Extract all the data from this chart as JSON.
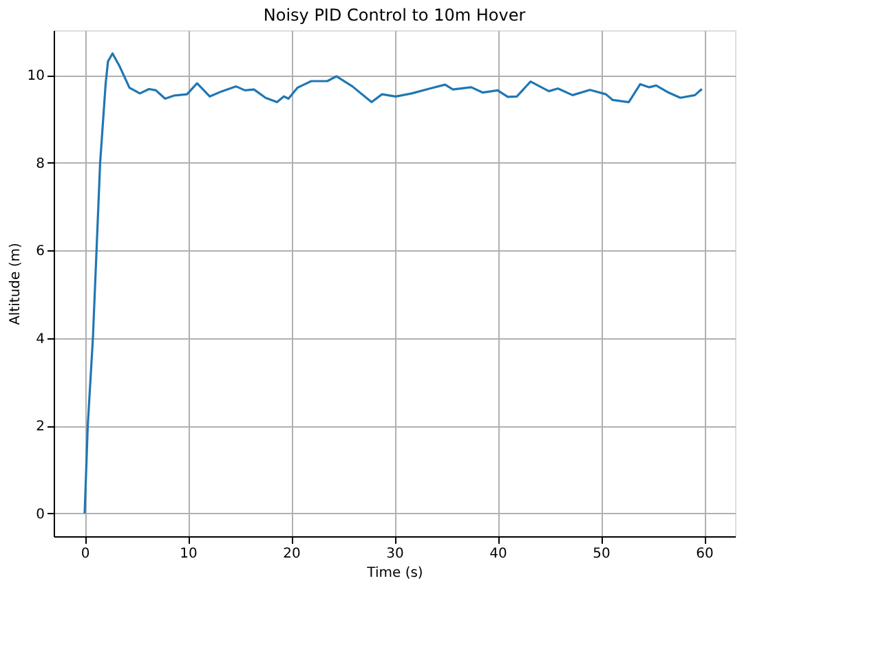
{
  "chart_data": {
    "type": "line",
    "title": "Noisy PID Control to 10m Hover",
    "xlabel": "Time (s)",
    "ylabel": "Altitude (m)",
    "series": [
      {
        "color": "#1f77b4",
        "x": [
          0,
          0.3,
          0.8,
          1.15,
          1.5,
          2.03,
          2.26,
          2.7,
          3.36,
          4.34,
          5.35,
          6.24,
          6.9,
          7.79,
          8.67,
          9.91,
          10.89,
          12.12,
          13.32,
          14.65,
          15.53,
          16.4,
          17.52,
          18.63,
          19.3,
          19.74,
          20.62,
          21.06,
          21.95,
          23.5,
          24.38,
          25.93,
          27.79,
          28.8,
          30.13,
          31.68,
          33.45,
          34.91,
          35.67,
          37.44,
          38.54,
          40.0,
          40.98,
          41.86,
          43.19,
          44.96,
          45.84,
          47.26,
          48.94,
          50.49,
          51.15,
          52.7,
          53.81,
          54.69,
          55.36,
          56.46,
          57.7,
          59.11,
          59.78
        ],
        "values": [
          0,
          2,
          4,
          6,
          8,
          9.79,
          10.31,
          10.49,
          10.21,
          9.71,
          9.58,
          9.68,
          9.65,
          9.46,
          9.53,
          9.56,
          9.81,
          9.51,
          9.63,
          9.74,
          9.65,
          9.67,
          9.48,
          9.38,
          9.51,
          9.46,
          9.71,
          9.76,
          9.86,
          9.86,
          9.97,
          9.74,
          9.38,
          9.56,
          9.51,
          9.58,
          9.69,
          9.78,
          9.67,
          9.72,
          9.6,
          9.65,
          9.5,
          9.51,
          9.85,
          9.63,
          9.69,
          9.54,
          9.66,
          9.56,
          9.43,
          9.38,
          9.79,
          9.72,
          9.76,
          9.61,
          9.48,
          9.54,
          9.68
        ]
      }
    ],
    "xlim": [
      -3,
      63
    ],
    "xticks": [
      0,
      10,
      20,
      30,
      40,
      50,
      60
    ],
    "ylim": [
      -0.52,
      11.02
    ],
    "yticks": [
      0,
      2,
      4,
      6,
      8,
      10
    ],
    "grid": true
  }
}
